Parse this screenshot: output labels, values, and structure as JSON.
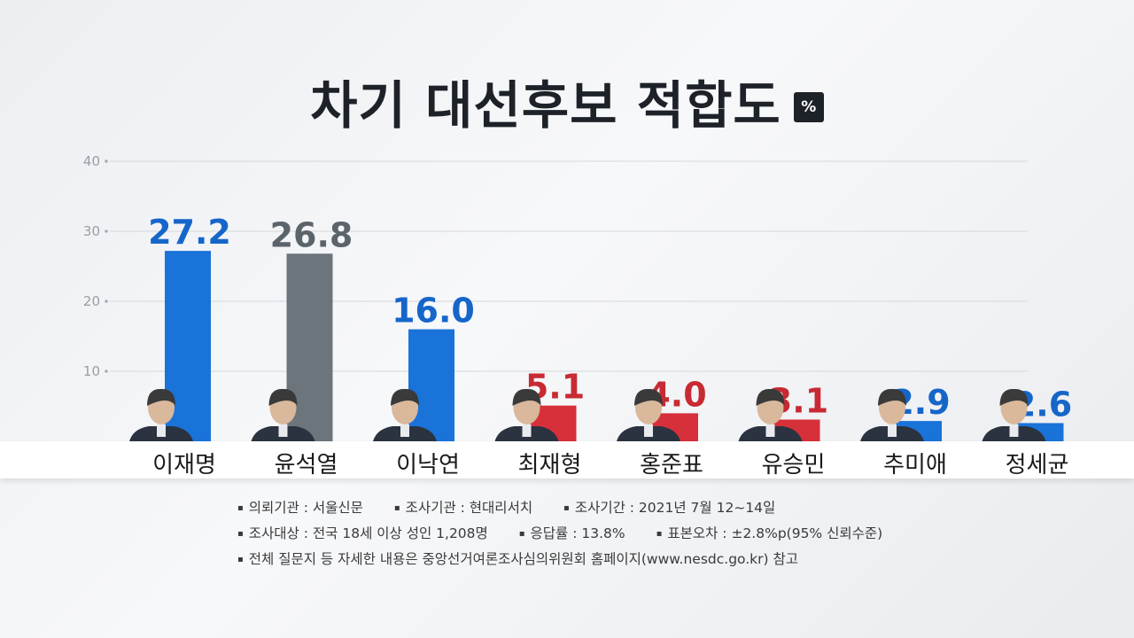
{
  "chart_data": {
    "type": "bar",
    "title": "차기 대선후보 적합도",
    "unit": "%",
    "categories": [
      "이재명",
      "윤석열",
      "이낙연",
      "최재형",
      "홍준표",
      "유승민",
      "추미애",
      "정세균"
    ],
    "values": [
      27.2,
      26.8,
      16.0,
      5.1,
      4.0,
      3.1,
      2.9,
      2.6
    ],
    "value_labels": [
      "27.2",
      "26.8",
      "16.0",
      "5.1",
      "4.0",
      "3.1",
      "2.9",
      "2.6"
    ],
    "bar_colors": [
      "#1a73d9",
      "#6d757c",
      "#1a73d9",
      "#d6303a",
      "#d6303a",
      "#d6303a",
      "#1a73d9",
      "#1a73d9"
    ],
    "label_colors": [
      "#1666c9",
      "#5c646b",
      "#1666c9",
      "#c82a33",
      "#c82a33",
      "#c82a33",
      "#1666c9",
      "#1666c9"
    ],
    "yticks": [
      "10",
      "20",
      "30",
      "40"
    ],
    "ylim": [
      0,
      40
    ],
    "grid": true
  },
  "notes": {
    "row1": [
      "의뢰기관 : 서울신문",
      "조사기관 : 현대리서치",
      "조사기간 : 2021년 7월 12~14일"
    ],
    "row2": [
      "조사대상 : 전국 18세 이상 성인 1,208명",
      "응답률 : 13.8%",
      "표본오차 : ±2.8%p(95% 신뢰수준)"
    ],
    "row3": [
      "전체 질문지 등 자세한 내용은 중앙선거여론조사심의위원회 홈페이지(www.nesdc.go.kr) 참고"
    ]
  },
  "colors": {
    "blue": "#1a73d9",
    "gray": "#6d757c",
    "red": "#d6303a"
  }
}
